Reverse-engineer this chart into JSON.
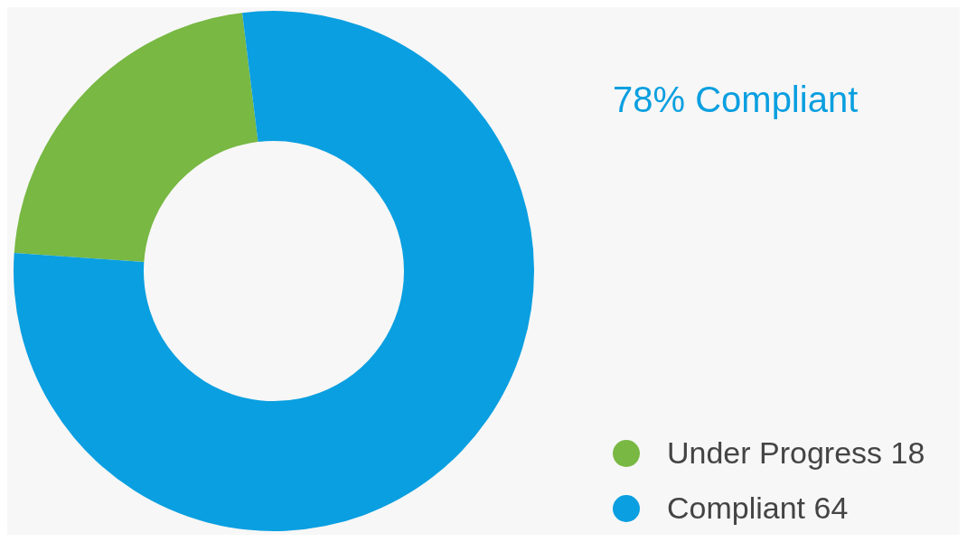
{
  "chart_data": {
    "type": "donut",
    "title": "78% Compliant",
    "categories": [
      "Under Progress",
      "Compliant"
    ],
    "values": [
      18,
      64
    ],
    "colors": [
      "#78b843",
      "#0a9fe0"
    ],
    "data_labels": true,
    "legend": "bottom right"
  }
}
